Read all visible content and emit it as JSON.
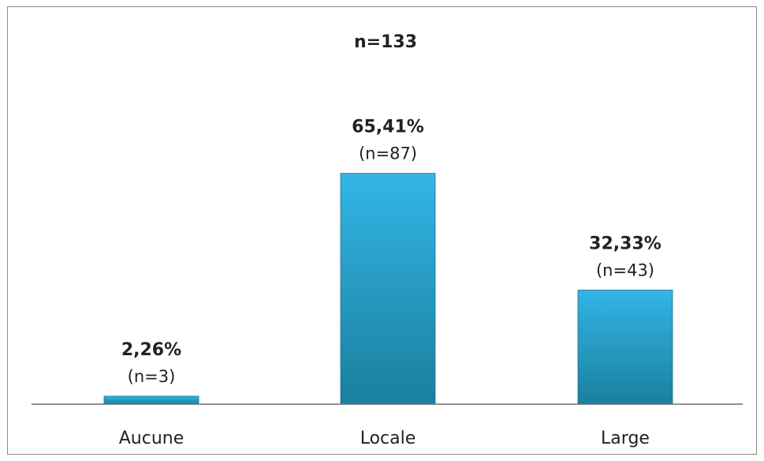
{
  "chart_data": {
    "type": "bar",
    "total_label": "n=133",
    "categories": [
      "Aucune",
      "Locale",
      "Large"
    ],
    "values": [
      2.26,
      65.41,
      32.33
    ],
    "percent_labels": [
      "2,26%",
      "65,41%",
      "32,33%"
    ],
    "count_labels": [
      "(n=3)",
      "(n=87)",
      "(n=43)"
    ],
    "ylim": [
      0,
      100
    ],
    "grid": false,
    "legend": "none",
    "bar_color_top": "#33b5e5",
    "bar_color_bottom": "#1a7f9e"
  }
}
